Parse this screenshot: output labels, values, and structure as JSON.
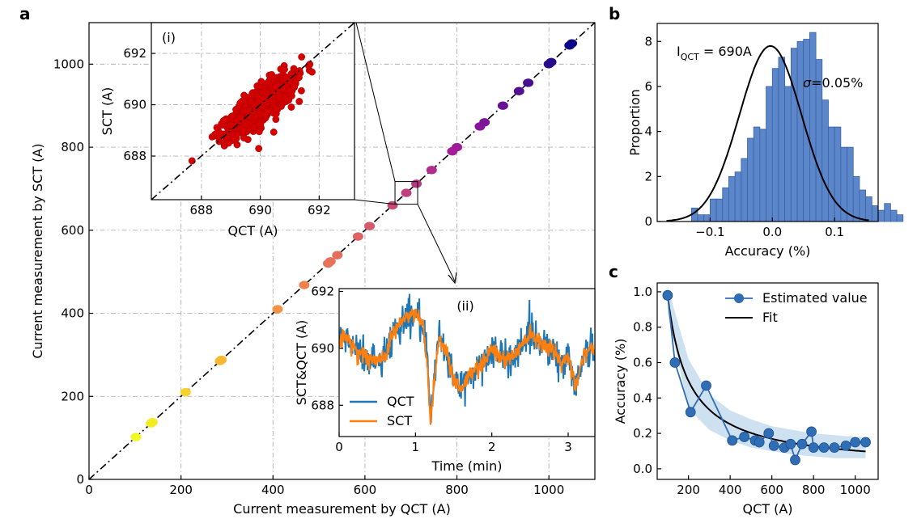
{
  "panel_labels": {
    "a": "a",
    "b": "b",
    "c": "c"
  },
  "colors": {
    "inset_scatter": "#d40000",
    "qct": "#1f77b4",
    "sct": "#ff7f0e",
    "hist_bar": "#5b86c9",
    "fit": "#000000",
    "estimate": "#2f6db5",
    "band": "#c6dcef"
  },
  "chart_data": [
    {
      "id": "a",
      "type": "scatter",
      "title": "",
      "xlabel": "Current measurement by QCT (A)",
      "ylabel": "Current measurement by SCT (A)",
      "xlim": [
        0,
        1100
      ],
      "ylim": [
        0,
        1100
      ],
      "xticks": [
        0,
        200,
        400,
        600,
        800,
        1000
      ],
      "yticks": [
        0,
        200,
        400,
        600,
        800,
        1000
      ],
      "grid": true,
      "reference_line": "y = x (dash-dot)",
      "colormap": "plasma_r (yellow to dark blue)",
      "points": [
        102,
        135,
        138,
        210,
        285,
        288,
        410,
        468,
        520,
        525,
        540,
        585,
        610,
        660,
        690,
        712,
        745,
        790,
        800,
        850,
        860,
        900,
        935,
        955,
        1000,
        1005,
        1045,
        1050
      ]
    },
    {
      "id": "a-inset-i",
      "type": "scatter",
      "label": "(i)",
      "title": "",
      "xlabel": "QCT (A)",
      "ylabel": "SCT (A)",
      "xlim": [
        686.3,
        693.2
      ],
      "ylim": [
        686.3,
        693.2
      ],
      "xticks": [
        688,
        690,
        692
      ],
      "yticks": [
        688,
        690,
        692
      ],
      "grid": true,
      "reference_line": "y = x (dash-dot)",
      "series": [
        {
          "name": "",
          "x_center": 690.0,
          "y_center": 690.0,
          "sd_along": 0.78,
          "sd_across": 0.27,
          "count": 700
        }
      ]
    },
    {
      "id": "a-inset-ii",
      "type": "line",
      "label": "(ii)",
      "title": "",
      "xlabel": "Time (min)",
      "ylabel": "SCT&QCT (A)",
      "xlim": [
        0,
        3.35
      ],
      "ylim": [
        686.9,
        692.1
      ],
      "xticks": [
        0,
        1,
        2,
        3
      ],
      "yticks": [
        688,
        690,
        692
      ],
      "legend": "lower-left",
      "series": [
        {
          "name": "QCT",
          "x": [
            0,
            0.1,
            0.2,
            0.3,
            0.4,
            0.5,
            0.6,
            0.7,
            0.8,
            0.9,
            1.0,
            1.1,
            1.15,
            1.2,
            1.25,
            1.3,
            1.4,
            1.5,
            1.6,
            1.7,
            1.8,
            1.9,
            2.0,
            2.1,
            2.2,
            2.3,
            2.4,
            2.5,
            2.6,
            2.7,
            2.8,
            2.9,
            3.0,
            3.1,
            3.2,
            3.3
          ],
          "y": [
            690.2,
            690.4,
            690.0,
            689.8,
            689.6,
            689.5,
            689.8,
            690.5,
            690.9,
            691.1,
            691.2,
            690.8,
            689.5,
            687.4,
            689.0,
            690.3,
            690.0,
            688.9,
            688.6,
            689.0,
            689.3,
            689.6,
            690.0,
            689.7,
            689.6,
            689.8,
            690.2,
            690.6,
            690.3,
            690.2,
            690.0,
            689.4,
            689.7,
            688.7,
            689.8,
            690.0
          ]
        },
        {
          "name": "SCT",
          "x": [
            0,
            0.1,
            0.2,
            0.3,
            0.4,
            0.5,
            0.6,
            0.7,
            0.8,
            0.9,
            1.0,
            1.1,
            1.15,
            1.2,
            1.25,
            1.3,
            1.4,
            1.5,
            1.6,
            1.7,
            1.8,
            1.9,
            2.0,
            2.1,
            2.2,
            2.3,
            2.4,
            2.5,
            2.6,
            2.7,
            2.8,
            2.9,
            3.0,
            3.1,
            3.2,
            3.3
          ],
          "y": [
            690.2,
            690.4,
            690.0,
            689.8,
            689.6,
            689.5,
            689.8,
            690.5,
            690.9,
            691.1,
            691.2,
            690.8,
            689.5,
            687.4,
            689.0,
            690.3,
            690.0,
            688.9,
            688.6,
            689.0,
            689.3,
            689.6,
            690.0,
            689.7,
            689.6,
            689.8,
            690.2,
            690.6,
            690.3,
            690.2,
            690.0,
            689.4,
            689.7,
            688.7,
            689.8,
            690.0
          ]
        }
      ]
    },
    {
      "id": "b",
      "type": "bar",
      "title": "",
      "xlabel": "Accuracy (%)",
      "ylabel": "Proportion",
      "xlim": [
        -0.185,
        0.17
      ],
      "ylim": [
        0,
        8.8
      ],
      "xticks": [
        -0.1,
        0.0,
        0.1
      ],
      "xtick_labels": [
        "−0.1",
        "0.0",
        "0.1"
      ],
      "yticks": [
        0,
        2,
        4,
        6,
        8
      ],
      "annotation_current": "I",
      "annotation_current_sub": "QCT",
      "annotation_current_value": " = 690A",
      "annotation_sigma_symbol": "σ",
      "annotation_sigma_value": "=0.05%",
      "bin_start": -0.13,
      "bin_width": 0.01,
      "values": [
        0.6,
        0.3,
        0.3,
        1.0,
        1.0,
        1.5,
        2.0,
        2.2,
        2.8,
        3.7,
        4.2,
        4.1,
        6.0,
        6.8,
        7.3,
        6.0,
        7.7,
        8.0,
        8.1,
        8.4,
        7.2,
        5.4,
        4.2,
        4.2,
        3.3,
        3.3,
        2.0,
        1.4,
        1.1,
        0.7,
        0.5,
        0.8,
        0.5,
        0.3
      ],
      "fit": {
        "type": "gaussian",
        "mean": -0.003,
        "sigma": 0.05,
        "peak": 7.8
      }
    },
    {
      "id": "c",
      "type": "line",
      "title": "",
      "xlabel": "QCT (A)",
      "ylabel": "Accuracy (%)",
      "xlim": [
        50,
        1110
      ],
      "ylim": [
        -0.06,
        1.05
      ],
      "xticks": [
        200,
        400,
        600,
        800,
        1000
      ],
      "yticks": [
        0.0,
        0.2,
        0.4,
        0.6,
        0.8,
        1.0
      ],
      "legend": "top-right",
      "series": [
        {
          "name": "Estimated value",
          "x": [
            100,
            135,
            210,
            285,
            410,
            468,
            520,
            540,
            585,
            610,
            660,
            690,
            712,
            745,
            790,
            800,
            850,
            900,
            955,
            1000,
            1050
          ],
          "y": [
            0.98,
            0.6,
            0.32,
            0.47,
            0.16,
            0.18,
            0.16,
            0.15,
            0.2,
            0.13,
            0.12,
            0.14,
            0.05,
            0.14,
            0.21,
            0.12,
            0.12,
            0.12,
            0.13,
            0.15,
            0.15
          ]
        },
        {
          "name": "Fit",
          "type": "power-law",
          "a": 0.98,
          "x0": 100,
          "exponent": -0.98
        }
      ],
      "band": {
        "x": [
          100,
          200,
          300,
          400,
          500,
          600,
          700,
          800,
          900,
          1000,
          1050
        ],
        "lower": [
          0.88,
          0.34,
          0.22,
          0.16,
          0.12,
          0.1,
          0.08,
          0.07,
          0.06,
          0.06,
          0.06
        ],
        "upper": [
          1.03,
          0.62,
          0.42,
          0.33,
          0.28,
          0.24,
          0.22,
          0.2,
          0.19,
          0.18,
          0.18
        ]
      }
    }
  ]
}
